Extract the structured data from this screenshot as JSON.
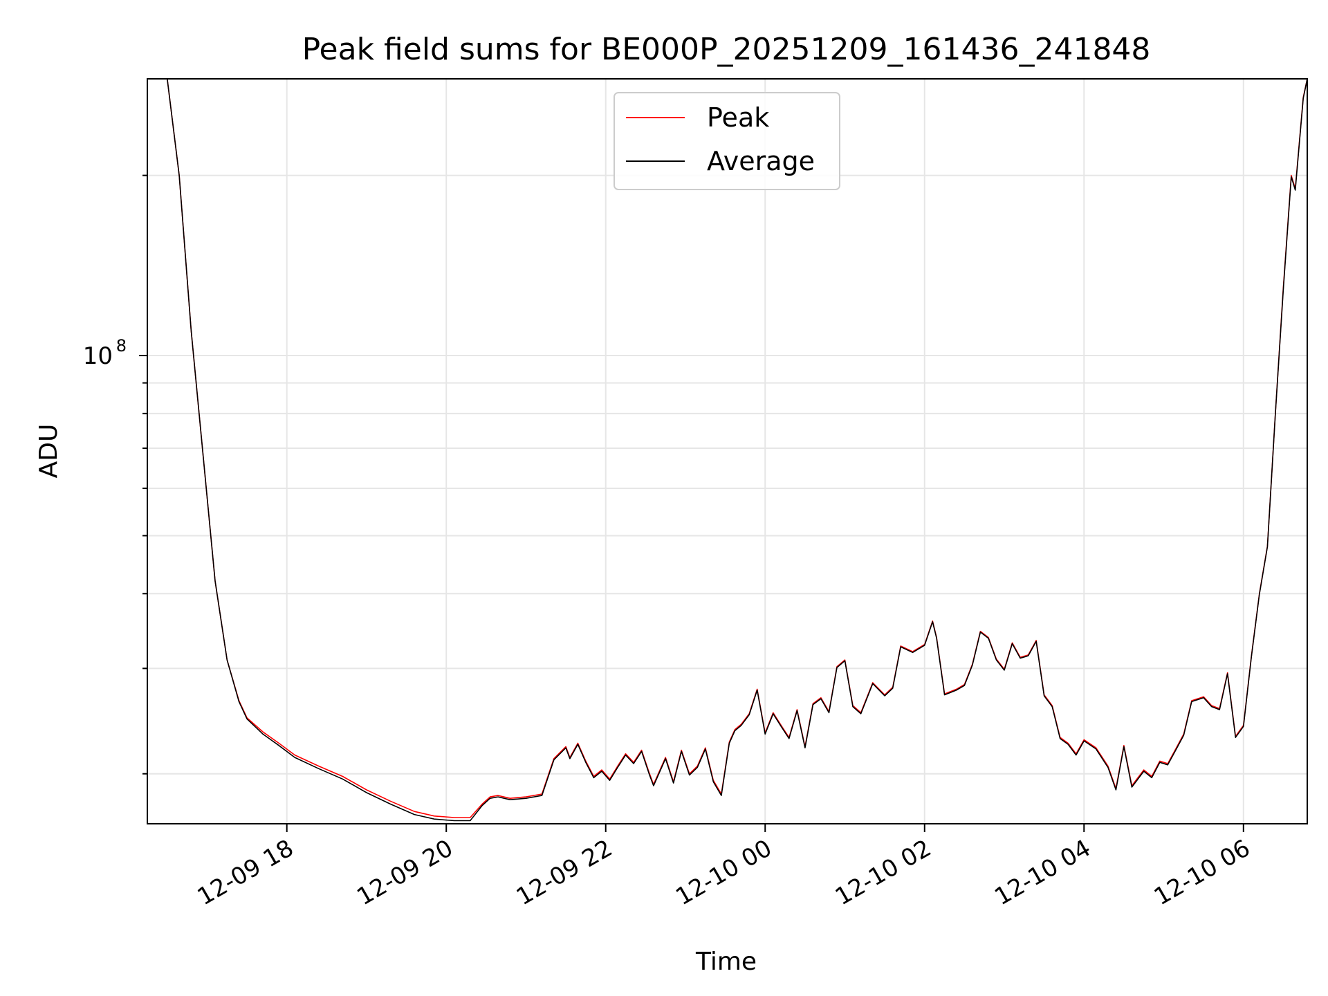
{
  "chart_data": {
    "type": "line",
    "title": "Peak field sums for BE000P_20251209_161436_241848",
    "xlabel": "Time",
    "ylabel": "ADU",
    "yscale": "log",
    "ylim": [
      16500000,
      290000000
    ],
    "xlim_hours": [
      16.25,
      30.8
    ],
    "xticks": [
      {
        "hour": 18,
        "label": "12-09 18"
      },
      {
        "hour": 20,
        "label": "12-09 20"
      },
      {
        "hour": 22,
        "label": "12-09 22"
      },
      {
        "hour": 24,
        "label": "12-10 00"
      },
      {
        "hour": 26,
        "label": "12-10 02"
      },
      {
        "hour": 28,
        "label": "12-10 04"
      },
      {
        "hour": 30,
        "label": "12-10 06"
      }
    ],
    "yticks_major": [
      {
        "value": 100000000,
        "label_base": "10",
        "label_exp": "8"
      }
    ],
    "yticks_minor": [
      20000000,
      30000000,
      40000000,
      50000000,
      60000000,
      70000000,
      80000000,
      90000000,
      200000000
    ],
    "grid": true,
    "legend_position": "upper-center",
    "legend": [
      {
        "name": "Peak",
        "color": "#ff0000"
      },
      {
        "name": "Average",
        "color": "#000000"
      }
    ],
    "x_hours": [
      16.25,
      16.5,
      16.65,
      16.8,
      16.95,
      17.1,
      17.25,
      17.4,
      17.5,
      17.7,
      17.9,
      18.1,
      18.4,
      18.7,
      19.0,
      19.3,
      19.6,
      19.85,
      20.1,
      20.3,
      20.45,
      20.55,
      20.65,
      20.8,
      21.0,
      21.2,
      21.35,
      21.5,
      21.55,
      21.65,
      21.75,
      21.85,
      21.95,
      22.05,
      22.15,
      22.25,
      22.35,
      22.45,
      22.55,
      22.6,
      22.75,
      22.85,
      22.95,
      23.05,
      23.15,
      23.25,
      23.35,
      23.45,
      23.55,
      23.62,
      23.7,
      23.8,
      23.9,
      24.0,
      24.1,
      24.2,
      24.3,
      24.4,
      24.5,
      24.6,
      24.7,
      24.8,
      24.9,
      25.0,
      25.1,
      25.2,
      25.35,
      25.5,
      25.6,
      25.7,
      25.85,
      26.0,
      26.1,
      26.15,
      26.25,
      26.4,
      26.5,
      26.6,
      26.7,
      26.8,
      26.9,
      27.0,
      27.1,
      27.2,
      27.3,
      27.4,
      27.5,
      27.6,
      27.7,
      27.8,
      27.9,
      28.0,
      28.15,
      28.3,
      28.4,
      28.5,
      28.6,
      28.75,
      28.85,
      28.95,
      29.05,
      29.15,
      29.25,
      29.35,
      29.5,
      29.6,
      29.7,
      29.8,
      29.9,
      30.0,
      30.1,
      30.2,
      30.3,
      30.4,
      30.5,
      30.6,
      30.65,
      30.75,
      30.8
    ],
    "series": [
      {
        "name": "Peak",
        "color": "#ff0000",
        "values": [
          290000000,
          290000000,
          200000000,
          110000000,
          68000000,
          42000000,
          31000000,
          26500000,
          24800000,
          23500000,
          22500000,
          21500000,
          20600000,
          19800000,
          18800000,
          18000000,
          17300000,
          17000000,
          16900000,
          16900000,
          17800000,
          18300000,
          18400000,
          18200000,
          18300000,
          18500000,
          21200000,
          22200000,
          21300000,
          22500000,
          21000000,
          19800000,
          20300000,
          19600000,
          20600000,
          21600000,
          20900000,
          21900000,
          20000000,
          19200000,
          21300000,
          19400000,
          21900000,
          20000000,
          20600000,
          22100000,
          19500000,
          18500000,
          22600000,
          23700000,
          24200000,
          25200000,
          27700000,
          23400000,
          25300000,
          24100000,
          23000000,
          25600000,
          22200000,
          26200000,
          26800000,
          25400000,
          30200000,
          31000000,
          26000000,
          25300000,
          28400000,
          27100000,
          27900000,
          32700000,
          32000000,
          32900000,
          36000000,
          33800000,
          27200000,
          27700000,
          28200000,
          30500000,
          34600000,
          33800000,
          31100000,
          29900000,
          33100000,
          31300000,
          31600000,
          33400000,
          27100000,
          26000000,
          23000000,
          22500000,
          21600000,
          22800000,
          22100000,
          20600000,
          18900000,
          22300000,
          19100000,
          20300000,
          19800000,
          21000000,
          20800000,
          22000000,
          23300000,
          26500000,
          26900000,
          26000000,
          25700000,
          29500000,
          23100000,
          24100000,
          31500000,
          40000000,
          48000000,
          80000000,
          130000000,
          200000000,
          190000000,
          270000000,
          290000000
        ]
      },
      {
        "name": "Average",
        "color": "#000000",
        "values": [
          290000000,
          290000000,
          200000000,
          110000000,
          68000000,
          42000000,
          31000000,
          26400000,
          24700000,
          23300000,
          22300000,
          21300000,
          20400000,
          19600000,
          18600000,
          17800000,
          17100000,
          16800000,
          16700000,
          16700000,
          17700000,
          18200000,
          18300000,
          18100000,
          18200000,
          18400000,
          21100000,
          22100000,
          21200000,
          22400000,
          20900000,
          19700000,
          20200000,
          19500000,
          20500000,
          21500000,
          20800000,
          21800000,
          19900000,
          19100000,
          21200000,
          19300000,
          21800000,
          19900000,
          20500000,
          22000000,
          19400000,
          18400000,
          22500000,
          23600000,
          24100000,
          25100000,
          27600000,
          23300000,
          25200000,
          24000000,
          22900000,
          25500000,
          22100000,
          26100000,
          26700000,
          25300000,
          30100000,
          30900000,
          25900000,
          25200000,
          28300000,
          27000000,
          27800000,
          32600000,
          31900000,
          32800000,
          35900000,
          33700000,
          27100000,
          27600000,
          28100000,
          30400000,
          34500000,
          33700000,
          31000000,
          29800000,
          33000000,
          31200000,
          31500000,
          33300000,
          27000000,
          25900000,
          22900000,
          22400000,
          21500000,
          22700000,
          22000000,
          20500000,
          18800000,
          22200000,
          19000000,
          20200000,
          19700000,
          20900000,
          20700000,
          21900000,
          23200000,
          26400000,
          26800000,
          25900000,
          25600000,
          29400000,
          23000000,
          24000000,
          31400000,
          39900000,
          47900000,
          79900000,
          129000000,
          199000000,
          189000000,
          269000000,
          290000000
        ]
      }
    ]
  }
}
